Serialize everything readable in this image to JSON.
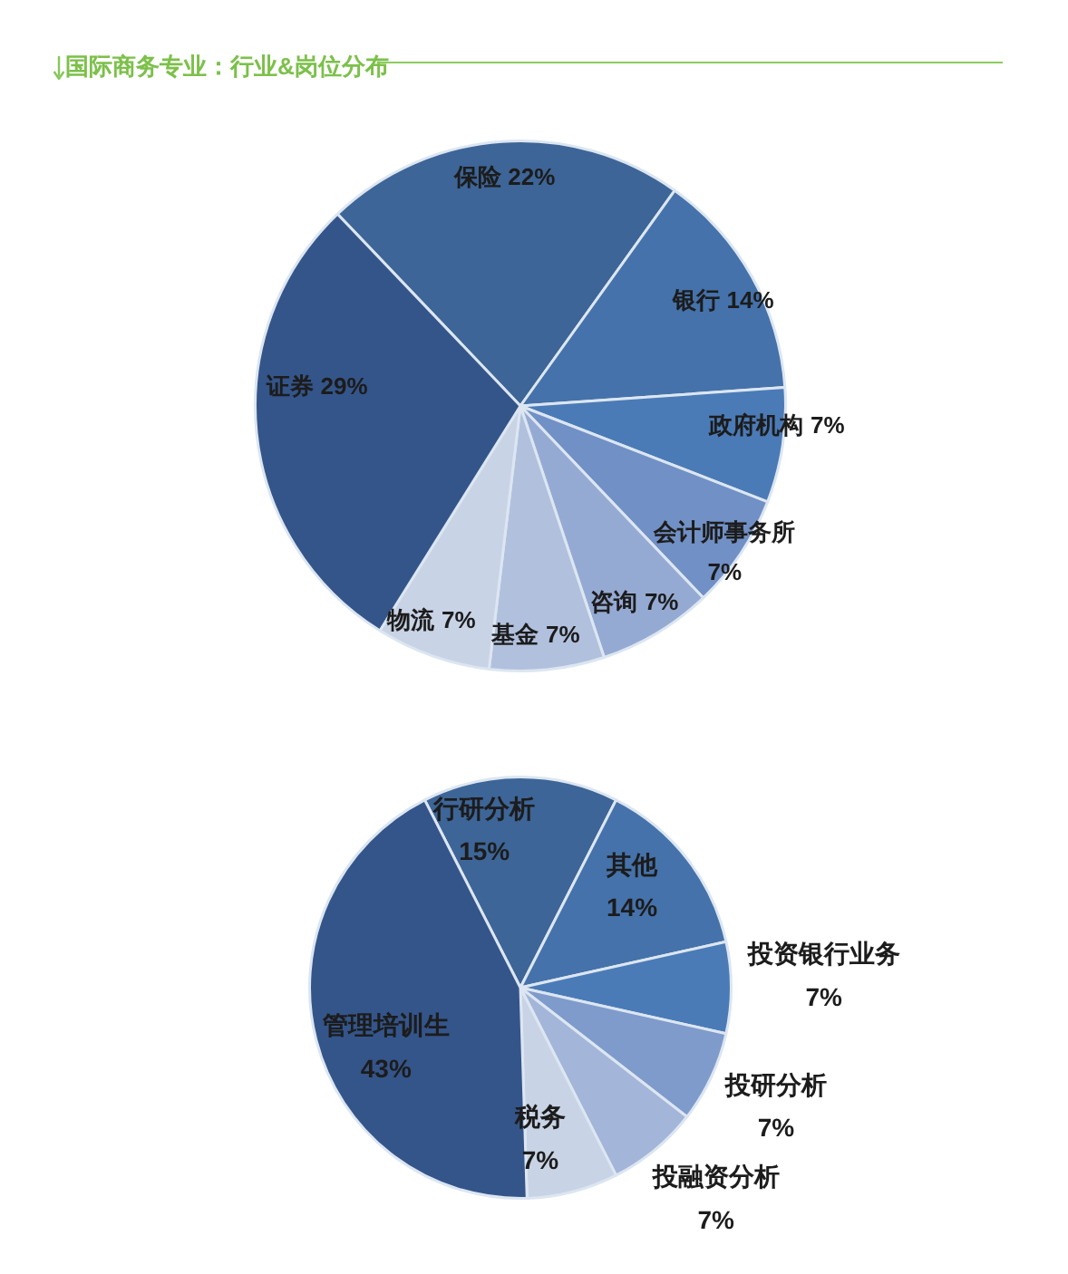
{
  "chart_data": [
    {
      "type": "pie",
      "title": "国际商务专业：行业&岗位分布",
      "categories": [
        "保险",
        "银行",
        "政府机构",
        "会计师事务所",
        "咨询",
        "基金",
        "物流",
        "证券"
      ],
      "values": [
        22,
        14,
        7,
        7,
        7,
        7,
        7,
        29
      ],
      "value_labels": [
        "22%",
        "14%",
        "7%",
        "7%",
        "7%",
        "7%",
        "7%",
        "29%"
      ],
      "colors": [
        "#3d6597",
        "#4572aa",
        "#4b7bb7",
        "#7190c5",
        "#95aad3",
        "#b1c0dd",
        "#c9d3e6",
        "#34558a"
      ]
    },
    {
      "type": "pie",
      "categories": [
        "行研分析",
        "其他",
        "投资银行业务",
        "投研分析",
        "投融资分析",
        "税务",
        "管理培训生"
      ],
      "values": [
        15,
        14,
        7,
        7,
        7,
        7,
        43
      ],
      "value_labels": [
        "15%",
        "14%",
        "7%",
        "7%",
        "7%",
        "7%",
        "43%"
      ],
      "colors": [
        "#3d6597",
        "#4572aa",
        "#4b7bb7",
        "#7f9bcb",
        "#a3b5d8",
        "#c9d3e6",
        "#34558a"
      ]
    }
  ]
}
